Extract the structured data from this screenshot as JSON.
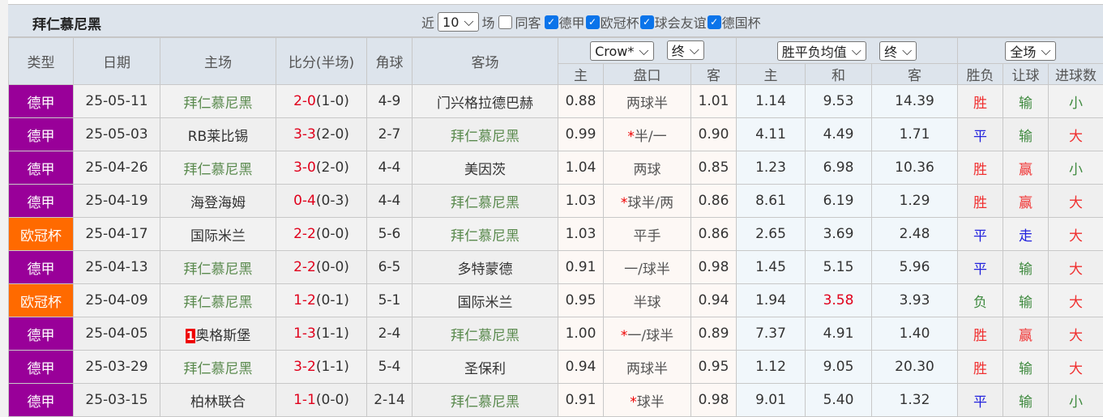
{
  "title": "拜仁慕尼黑",
  "filters": {
    "recent_prefix": "近",
    "recent_value": "10",
    "recent_suffix": "场",
    "same_away": "同客",
    "same_away_checked": false,
    "leagues": [
      {
        "label": "德甲",
        "checked": true
      },
      {
        "label": "欧冠杯",
        "checked": true
      },
      {
        "label": "球会友谊",
        "checked": true
      },
      {
        "label": "德国杯",
        "checked": true
      }
    ]
  },
  "header": {
    "type": "类型",
    "date": "日期",
    "home": "主场",
    "score": "比分(半场)",
    "corner": "角球",
    "away": "客场",
    "ah_company": "Crow*",
    "ah_stage": "终",
    "eu_type": "胜平负均值",
    "eu_stage": "终",
    "result_scope": "全场",
    "ah_home": "主",
    "ah_line": "盘口",
    "ah_away": "客",
    "eu_home": "主",
    "eu_draw": "和",
    "eu_away": "客",
    "res_wl": "胜负",
    "res_ah": "让球",
    "res_ou": "进球数"
  },
  "colors": {
    "bundesliga": "#990099",
    "ucl": "#ff6a00",
    "team_highlight": "#5a8a4e",
    "score": "#e0001b"
  },
  "rows": [
    {
      "type": "德甲",
      "date": "25-05-11",
      "home": "拜仁慕尼黑",
      "ft": "2-0",
      "ht": "(1-0)",
      "corner": "4-9",
      "away": "门兴格拉德巴赫",
      "ah_h": "0.88",
      "star": "",
      "line": "两球半",
      "ah_a": "1.01",
      "eu_h": "1.14",
      "eu_d": "9.53",
      "eu_a": "14.39",
      "wl": "胜",
      "ah": "输",
      "ou": "小"
    },
    {
      "type": "德甲",
      "date": "25-05-03",
      "home": "RB莱比锡",
      "ft": "3-3",
      "ht": "(2-0)",
      "corner": "2-7",
      "away": "拜仁慕尼黑",
      "ah_h": "0.99",
      "star": "*",
      "line": "半/一",
      "ah_a": "0.90",
      "eu_h": "4.11",
      "eu_d": "4.49",
      "eu_a": "1.71",
      "wl": "平",
      "ah": "输",
      "ou": "大"
    },
    {
      "type": "德甲",
      "date": "25-04-26",
      "home": "拜仁慕尼黑",
      "ft": "3-0",
      "ht": "(2-0)",
      "corner": "4-4",
      "away": "美因茨",
      "ah_h": "1.04",
      "star": "",
      "line": "两球",
      "ah_a": "0.85",
      "eu_h": "1.23",
      "eu_d": "6.98",
      "eu_a": "10.36",
      "wl": "胜",
      "ah": "赢",
      "ou": "小"
    },
    {
      "type": "德甲",
      "date": "25-04-19",
      "home": "海登海姆",
      "ft": "0-4",
      "ht": "(0-3)",
      "corner": "4-4",
      "away": "拜仁慕尼黑",
      "ah_h": "1.03",
      "star": "*",
      "line": "球半/两",
      "ah_a": "0.86",
      "eu_h": "8.61",
      "eu_d": "6.19",
      "eu_a": "1.29",
      "wl": "胜",
      "ah": "赢",
      "ou": "大"
    },
    {
      "type": "欧冠杯",
      "date": "25-04-17",
      "home": "国际米兰",
      "ft": "2-2",
      "ht": "(0-0)",
      "corner": "5-6",
      "away": "拜仁慕尼黑",
      "ah_h": "1.03",
      "star": "",
      "line": "平手",
      "ah_a": "0.86",
      "eu_h": "2.65",
      "eu_d": "3.69",
      "eu_a": "2.48",
      "wl": "平",
      "ah": "走",
      "ou": "大"
    },
    {
      "type": "德甲",
      "date": "25-04-13",
      "home": "拜仁慕尼黑",
      "ft": "2-2",
      "ht": "(0-0)",
      "corner": "6-5",
      "away": "多特蒙德",
      "ah_h": "0.91",
      "star": "",
      "line": "一/球半",
      "ah_a": "0.98",
      "eu_h": "1.45",
      "eu_d": "5.15",
      "eu_a": "5.96",
      "wl": "平",
      "ah": "输",
      "ou": "大"
    },
    {
      "type": "欧冠杯",
      "date": "25-04-09",
      "home": "拜仁慕尼黑",
      "ft": "1-2",
      "ht": "(0-1)",
      "corner": "5-1",
      "away": "国际米兰",
      "ah_h": "0.95",
      "star": "",
      "line": "半球",
      "ah_a": "0.94",
      "eu_h": "1.94",
      "eu_d": "3.58",
      "eu_d_red": true,
      "eu_a": "3.93",
      "wl": "负",
      "ah": "输",
      "ou": "大"
    },
    {
      "type": "德甲",
      "date": "25-04-05",
      "home_rank": "1",
      "home": "奥格斯堡",
      "ft": "1-3",
      "ht": "(1-1)",
      "corner": "2-4",
      "away": "拜仁慕尼黑",
      "ah_h": "1.00",
      "star": "*",
      "line": "一/球半",
      "ah_a": "0.89",
      "eu_h": "7.37",
      "eu_d": "4.91",
      "eu_a": "1.40",
      "wl": "胜",
      "ah": "赢",
      "ou": "大"
    },
    {
      "type": "德甲",
      "date": "25-03-29",
      "home": "拜仁慕尼黑",
      "ft": "3-2",
      "ht": "(1-1)",
      "corner": "5-4",
      "away": "圣保利",
      "ah_h": "0.94",
      "star": "",
      "line": "两球半",
      "ah_a": "0.95",
      "eu_h": "1.12",
      "eu_d": "9.05",
      "eu_a": "20.30",
      "wl": "胜",
      "ah": "输",
      "ou": "大"
    },
    {
      "type": "德甲",
      "date": "25-03-15",
      "home": "柏林联合",
      "ft": "1-1",
      "ht": "(0-0)",
      "corner": "2-14",
      "away": "拜仁慕尼黑",
      "ah_h": "0.91",
      "star": "*",
      "line": "球半",
      "ah_a": "0.98",
      "eu_h": "9.01",
      "eu_d": "5.40",
      "eu_a": "1.32",
      "wl": "平",
      "ah": "输",
      "ou": "小"
    }
  ]
}
